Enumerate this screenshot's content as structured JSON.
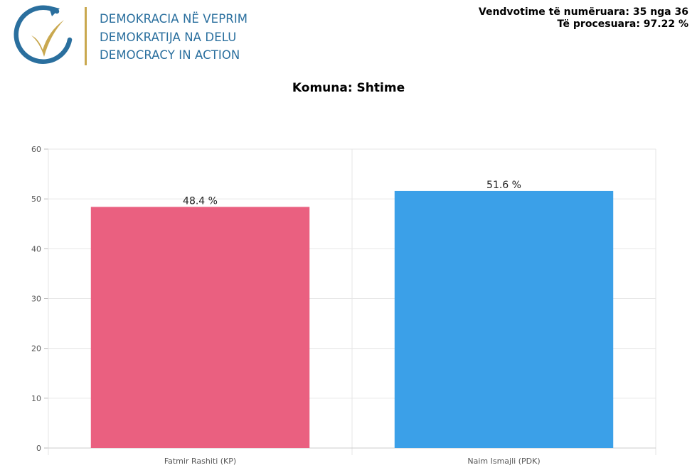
{
  "header": {
    "logo_lines": [
      "DEMOKRACIA NË VEPRIM",
      "DEMOKRATIJA NA DELU",
      "DEMOCRACY IN ACTION"
    ],
    "stats": [
      "Vendvotime të numëruara: 35 nga 36",
      "Të procesuara: 97.22 %"
    ]
  },
  "colors": {
    "logo_blue": "#2a6f9e",
    "logo_gold": "#c9a84f",
    "bar_kp": "#ea6080",
    "bar_pdk": "#3ba0e8",
    "grid": "#e6e6e6"
  },
  "chart_data": {
    "type": "bar",
    "title": "Komuna: Shtime",
    "categories": [
      "Fatmir Rashiti (KP)",
      "Naim Ismajli (PDK)"
    ],
    "values": [
      48.4,
      51.6
    ],
    "data_labels": [
      "48.4 %",
      "51.6 %"
    ],
    "bar_colors": [
      "#ea6080",
      "#3ba0e8"
    ],
    "ylim": [
      0,
      60
    ],
    "yticks": [
      0,
      10,
      20,
      30,
      40,
      50,
      60
    ],
    "xlabel": "",
    "ylabel": "",
    "grid": true,
    "legend": "none"
  }
}
